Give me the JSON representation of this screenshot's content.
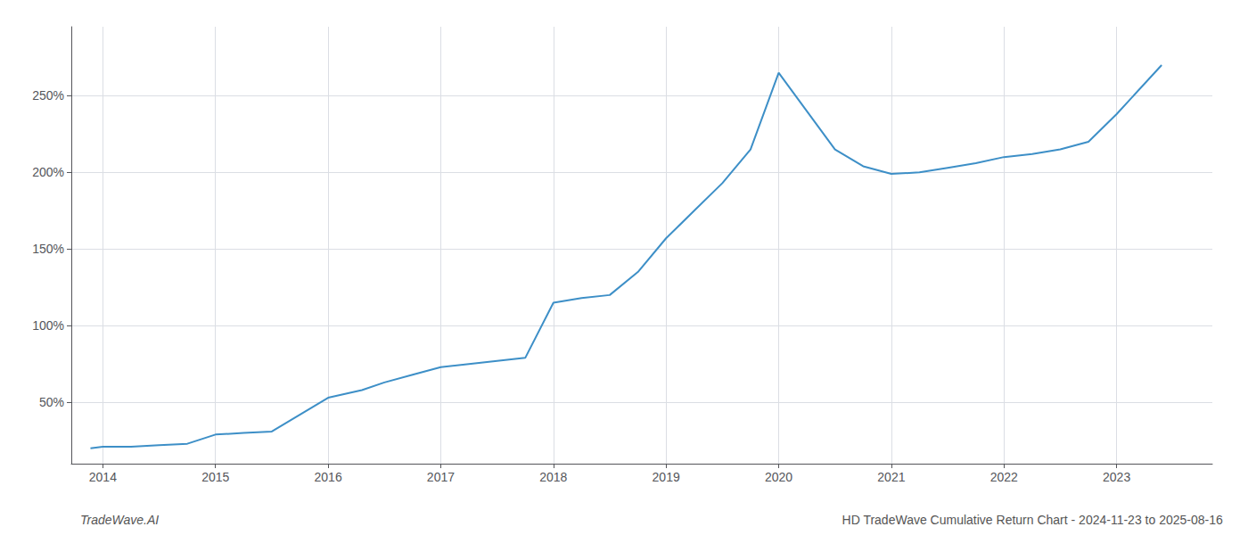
{
  "chart_data": {
    "type": "line",
    "x": [
      2013.89,
      2014.0,
      2014.25,
      2014.5,
      2014.75,
      2015.0,
      2015.25,
      2015.5,
      2016.0,
      2016.3,
      2016.5,
      2016.75,
      2017.0,
      2017.25,
      2017.5,
      2017.75,
      2018.0,
      2018.25,
      2018.5,
      2018.75,
      2019.0,
      2019.25,
      2019.5,
      2019.75,
      2020.0,
      2020.25,
      2020.5,
      2020.75,
      2021.0,
      2021.25,
      2021.5,
      2021.75,
      2022.0,
      2022.25,
      2022.5,
      2022.75,
      2023.0,
      2023.4
    ],
    "values": [
      20,
      21,
      21,
      22,
      23,
      29,
      30,
      31,
      53,
      58,
      63,
      68,
      73,
      75,
      77,
      79,
      115,
      118,
      120,
      135,
      157,
      175,
      193,
      215,
      265,
      240,
      215,
      204,
      199,
      200,
      203,
      206,
      210,
      212,
      215,
      220,
      238,
      270
    ],
    "color": "#3d8fc7",
    "xlim": [
      2013.72,
      2023.85
    ],
    "xticks": [
      2014,
      2015,
      2016,
      2017,
      2018,
      2019,
      2020,
      2021,
      2022,
      2023
    ],
    "ylim": [
      10,
      295
    ],
    "yticks": [
      {
        "value": 50,
        "label": "50%"
      },
      {
        "value": 100,
        "label": "100%"
      },
      {
        "value": 150,
        "label": "150%"
      },
      {
        "value": 200,
        "label": "200%"
      },
      {
        "value": 250,
        "label": "250%"
      }
    ],
    "grid": true,
    "annotations": [
      "TradeWave.AI",
      "HD TradeWave Cumulative Return Chart - 2024-11-23 to 2025-08-16"
    ]
  }
}
